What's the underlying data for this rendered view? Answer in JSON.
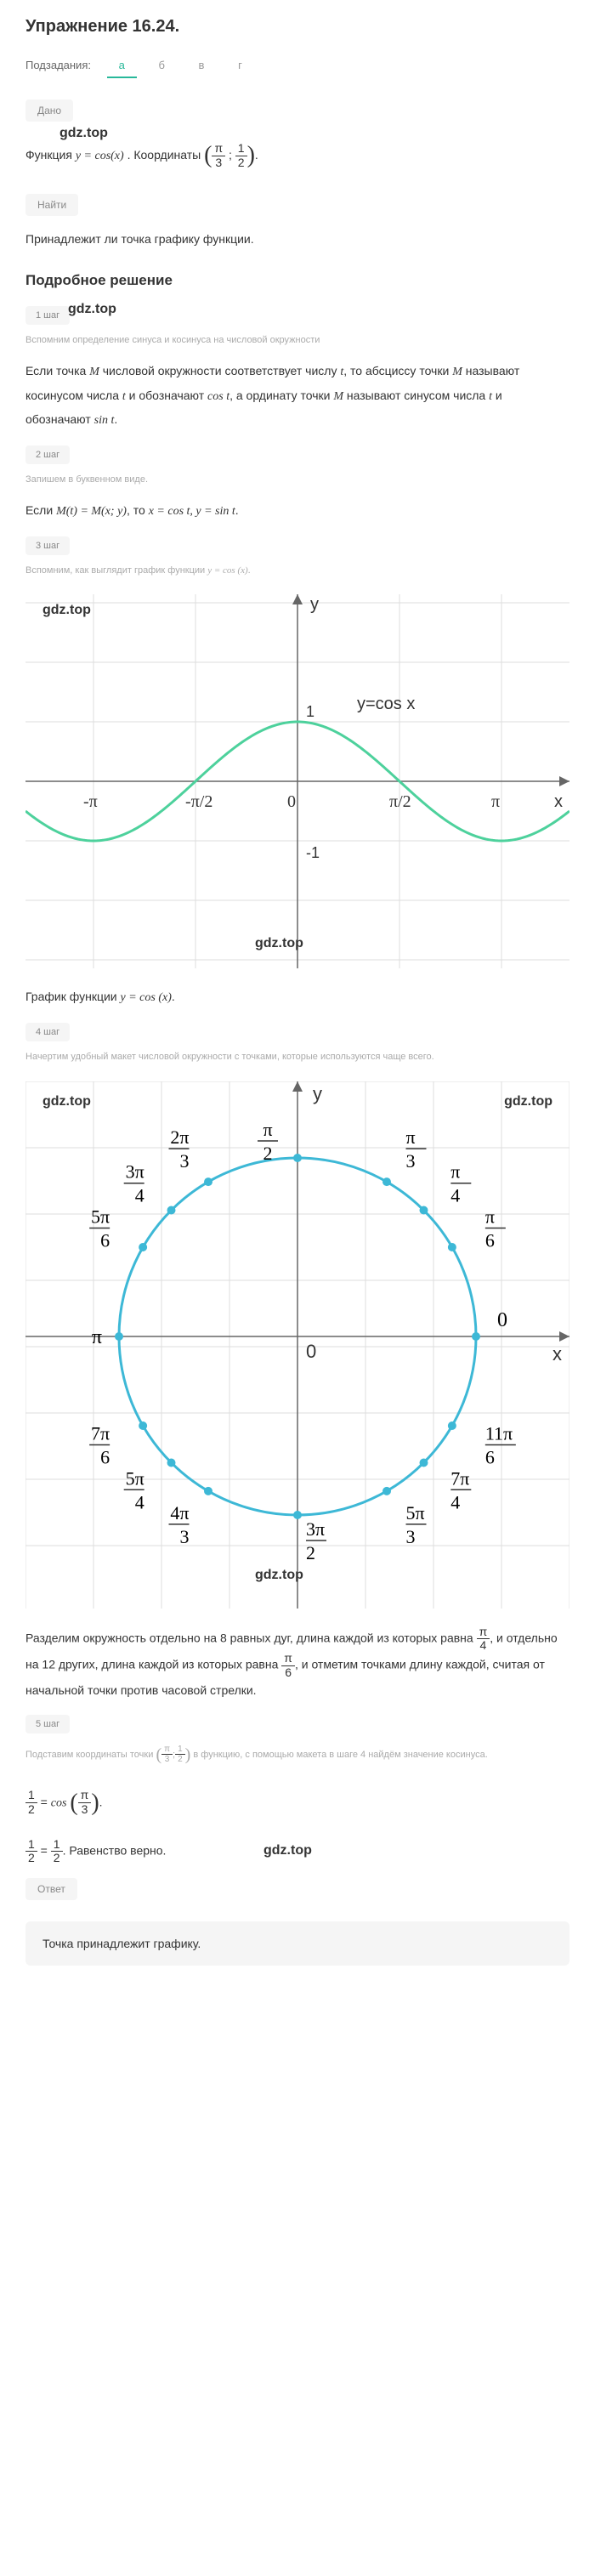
{
  "exercise": {
    "title": "Упражнение 16.24."
  },
  "subtasks": {
    "label": "Подзадания:",
    "tabs": [
      {
        "label": "а",
        "active": true
      },
      {
        "label": "б",
        "active": false
      },
      {
        "label": "в",
        "active": false
      },
      {
        "label": "г",
        "active": false
      }
    ]
  },
  "given": {
    "pill": "Дано",
    "text_prefix": "Функция ",
    "func": "y = cos(x)",
    "text_mid": ". Координаты ",
    "coord_x_n": "π",
    "coord_x_d": "3",
    "coord_y_n": "1",
    "coord_y_d": "2"
  },
  "find": {
    "pill": "Найти",
    "text": "Принадлежит ли точка графику функции."
  },
  "solution": {
    "title": "Подробное решение"
  },
  "step1": {
    "pill": "1 шаг",
    "note": "Вспомним определение синуса и косинуса на числовой окружности",
    "p1": "Если точка M числовой окружности соответствует числу t, то абсциссу точки M называют косинусом числа t и обозначают cos t, а ординату точки M называют синусом числа t и обозначают sin t."
  },
  "step2": {
    "pill": "2 шаг",
    "note": "Запишем в буквенном виде.",
    "p1": "Если M(t) = M(x; y), то x = cos t, y = sin t."
  },
  "step3": {
    "pill": "3 шаг",
    "note": "Вспомним, как выглядит график функции y = cos (x).",
    "caption": "График функции y = cos (x)."
  },
  "step4": {
    "pill": "4 шаг",
    "note": "Начертим удобный макет числовой окружности с точками, которые используются чаще всего.",
    "p1": "Разделим окружность отдельно на 8 равных дуг, длина каждой из которых равна π/4, и отдельно на 12 других, длина каждой из которых равна π/6, и отметим точками длину каждой, считая от начальной точки против часовой стрелки."
  },
  "step5": {
    "pill": "5 шаг",
    "note_prefix": "Подставим координаты точки ",
    "note_suffix": " в функцию, с помощью макета в шаге 4 найдём значение косинуса.",
    "eq1_lhs_n": "1",
    "eq1_lhs_d": "2",
    "eq1_rhs_prefix": "cos",
    "eq1_rhs_n": "π",
    "eq1_rhs_d": "3",
    "eq2_lhs_n": "1",
    "eq2_lhs_d": "2",
    "eq2_rhs_n": "1",
    "eq2_rhs_d": "2",
    "eq2_suffix": ". Равенство верно."
  },
  "answer": {
    "pill": "Ответ",
    "text": "Точка принадлежит графику."
  },
  "watermarks": {
    "text": "gdz.top"
  },
  "chart1": {
    "type": "line",
    "bg": "#ffffff",
    "axis_color": "#666666",
    "grid_color": "#dddddd",
    "curve_color": "#4dd19c",
    "curve_width": 3,
    "y_label": "y",
    "x_label": "x",
    "func_label": "y=cos x",
    "x_ticks": [
      "-π",
      "-π/2",
      "0",
      "π/2",
      "π"
    ],
    "y_ticks": [
      "-1",
      "1"
    ]
  },
  "chart2": {
    "type": "circle-diagram",
    "bg": "#ffffff",
    "axis_color": "#666666",
    "grid_color": "#dddddd",
    "circle_color": "#3db8d6",
    "circle_width": 3,
    "point_color": "#3db8d6",
    "point_radius": 5,
    "y_label": "y",
    "x_label": "x",
    "zero_label": "0",
    "labels": [
      "π/2",
      "π/3",
      "2π/3",
      "π/4",
      "3π/4",
      "π/6",
      "5π/6",
      "0",
      "π",
      "11π/6",
      "7π/6",
      "7π/4",
      "5π/4",
      "5π/3",
      "4π/3",
      "3π/2"
    ],
    "angles_deg": [
      90,
      60,
      120,
      45,
      135,
      30,
      150,
      0,
      180,
      330,
      210,
      315,
      225,
      300,
      240,
      270
    ]
  }
}
